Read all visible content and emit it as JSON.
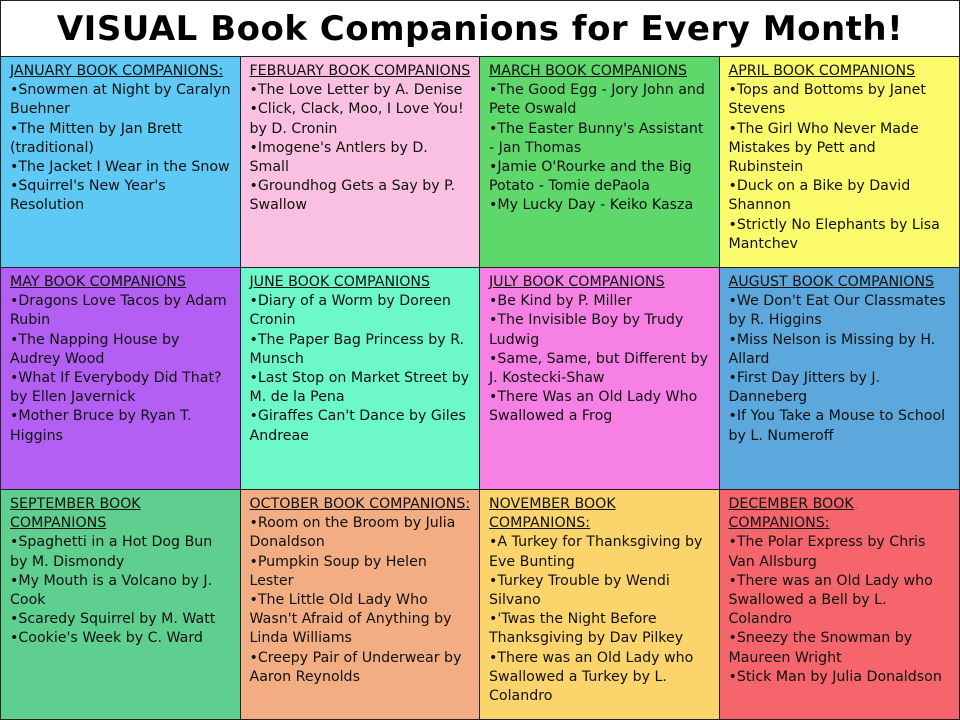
{
  "header": {
    "title": "VISUAL Book Companions for Every Month!"
  },
  "months": [
    {
      "heading": "JANUARY BOOK COMPANIONS:",
      "color": "#5ec9f4",
      "items": [
        "•Snowmen at Night by Caralyn Buehner",
        "•The Mitten by Jan Brett (traditional)",
        "•The Jacket I Wear in the Snow",
        "•Squirrel's New Year's Resolution"
      ]
    },
    {
      "heading": "FEBRUARY BOOK COMPANIONS",
      "color": "#f9c0e1",
      "items": [
        "•The Love Letter by A. Denise",
        "•Click, Clack, Moo, I Love You! by D. Cronin",
        "•Imogene's Antlers by D. Small",
        "•Groundhog Gets a Say by P. Swallow"
      ]
    },
    {
      "heading": "MARCH BOOK COMPANIONS",
      "color": "#5fd86b",
      "items": [
        "•The Good Egg - Jory John and Pete Oswald",
        "•The Easter Bunny's Assistant - Jan Thomas",
        "•Jamie O'Rourke and the Big Potato - Tomie dePaola",
        "•My Lucky Day - Keiko Kasza"
      ]
    },
    {
      "heading": "APRIL BOOK COMPANIONS",
      "color": "#fbfb6c",
      "items": [
        "•Tops and Bottoms by Janet Stevens",
        "•The Girl Who Never Made Mistakes by Pett and Rubinstein",
        "•Duck on a Bike by David Shannon",
        "•Strictly No Elephants by Lisa Mantchev"
      ]
    },
    {
      "heading": "MAY BOOK COMPANIONS",
      "color": "#b35ff4",
      "items": [
        "•Dragons Love Tacos by Adam Rubin",
        "•The Napping House by Audrey Wood",
        "•What If Everybody Did That? by Ellen Javernick",
        "•Mother Bruce by Ryan T. Higgins"
      ]
    },
    {
      "heading": "JUNE BOOK COMPANIONS",
      "color": "#6df8c9",
      "items": [
        "•Diary of a Worm by Doreen Cronin",
        "•The Paper Bag Princess by R. Munsch",
        "•Last Stop on Market Street by M. de la Pena",
        "•Giraffes Can't Dance by Giles Andreae"
      ]
    },
    {
      "heading": "JULY BOOK COMPANIONS",
      "color": "#f680e4",
      "items": [
        "•Be Kind by P. Miller",
        "•The Invisible Boy by Trudy Ludwig",
        "•Same, Same, but Different by J. Kostecki-Shaw",
        "•There Was an Old Lady Who Swallowed a Frog"
      ]
    },
    {
      "heading": "AUGUST BOOK COMPANIONS",
      "color": "#5ca8dc",
      "items": [
        "•We Don't Eat Our Classmates by R. Higgins",
        "•Miss Nelson is Missing by H. Allard",
        "•First Day Jitters by J. Danneberg",
        "•If You Take a Mouse to School by L. Numeroff"
      ]
    },
    {
      "heading": "SEPTEMBER BOOK COMPANIONS",
      "color": "#5fcf8f",
      "items": [
        "•Spaghetti in a Hot Dog Bun by M. Dismondy",
        "•My Mouth is a Volcano by J. Cook",
        "•Scaredy Squirrel by M. Watt",
        "•Cookie's Week by C. Ward"
      ]
    },
    {
      "heading": "OCTOBER BOOK COMPANIONS:",
      "color": "#f2ad83",
      "items": [
        "•Room on the Broom by Julia Donaldson",
        "•Pumpkin Soup by Helen Lester",
        "•The Little Old Lady Who Wasn't Afraid of Anything by Linda Williams",
        "•Creepy Pair of Underwear by Aaron Reynolds"
      ]
    },
    {
      "heading": "NOVEMBER BOOK COMPANIONS:",
      "color": "#fbd46b",
      "items": [
        "•A Turkey for Thanksgiving by Eve Bunting",
        "•Turkey Trouble by Wendi Silvano",
        "•'Twas the Night Before Thanksgiving by Dav Pilkey",
        "•There was an Old Lady who Swallowed a Turkey by L. Colandro"
      ]
    },
    {
      "heading": "DECEMBER BOOK COMPANIONS:",
      "color": "#f6646c",
      "items": [
        "•The Polar Express by Chris Van Allsburg",
        "•There was an Old Lady who Swallowed a Bell by L. Colandro",
        "•Sneezy the Snowman by Maureen Wright",
        "•Stick Man by Julia Donaldson"
      ]
    }
  ]
}
